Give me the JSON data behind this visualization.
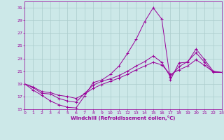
{
  "xlabel": "Windchill (Refroidissement éolien,°C)",
  "bg_color": "#cce8e8",
  "grid_color": "#aacccc",
  "line_color": "#990099",
  "xlim": [
    0,
    23
  ],
  "ylim": [
    15,
    32
  ],
  "xticks": [
    0,
    1,
    2,
    3,
    4,
    5,
    6,
    7,
    8,
    9,
    10,
    11,
    12,
    13,
    14,
    15,
    16,
    17,
    18,
    19,
    20,
    21,
    22,
    23
  ],
  "yticks": [
    15,
    17,
    19,
    21,
    23,
    25,
    27,
    29,
    31
  ],
  "curve1_x": [
    0,
    1,
    2,
    3,
    4,
    5,
    6,
    7,
    8,
    9,
    10,
    11,
    12,
    13,
    14,
    15,
    16,
    17,
    18,
    19,
    20,
    21,
    22,
    23
  ],
  "curve1_y": [
    19.0,
    18.0,
    17.2,
    16.3,
    15.7,
    15.3,
    15.2,
    17.1,
    19.2,
    19.6,
    20.5,
    21.8,
    23.8,
    26.0,
    28.8,
    31.0,
    29.2,
    19.6,
    22.3,
    22.4,
    24.5,
    22.8,
    21.0,
    20.8
  ],
  "curve2_x": [
    0,
    1,
    2,
    3,
    4,
    5,
    6,
    7,
    8,
    9,
    10,
    11,
    12,
    13,
    14,
    15,
    16,
    17,
    18,
    19,
    20,
    21,
    22,
    23
  ],
  "curve2_y": [
    19.0,
    18.4,
    17.5,
    17.4,
    16.7,
    16.3,
    16.1,
    17.5,
    18.8,
    19.4,
    19.8,
    20.3,
    21.0,
    21.8,
    22.5,
    23.4,
    22.4,
    20.1,
    21.7,
    22.5,
    23.9,
    22.4,
    20.8,
    20.8
  ],
  "curve3_x": [
    0,
    1,
    2,
    3,
    4,
    5,
    6,
    7,
    8,
    9,
    10,
    11,
    12,
    13,
    14,
    15,
    16,
    17,
    18,
    19,
    20,
    21,
    22,
    23
  ],
  "curve3_y": [
    19.0,
    18.5,
    17.8,
    17.6,
    17.2,
    17.0,
    16.7,
    17.4,
    18.3,
    18.9,
    19.4,
    19.9,
    20.5,
    21.2,
    21.8,
    22.4,
    22.0,
    20.5,
    21.2,
    21.8,
    22.8,
    21.9,
    20.9,
    20.8
  ]
}
